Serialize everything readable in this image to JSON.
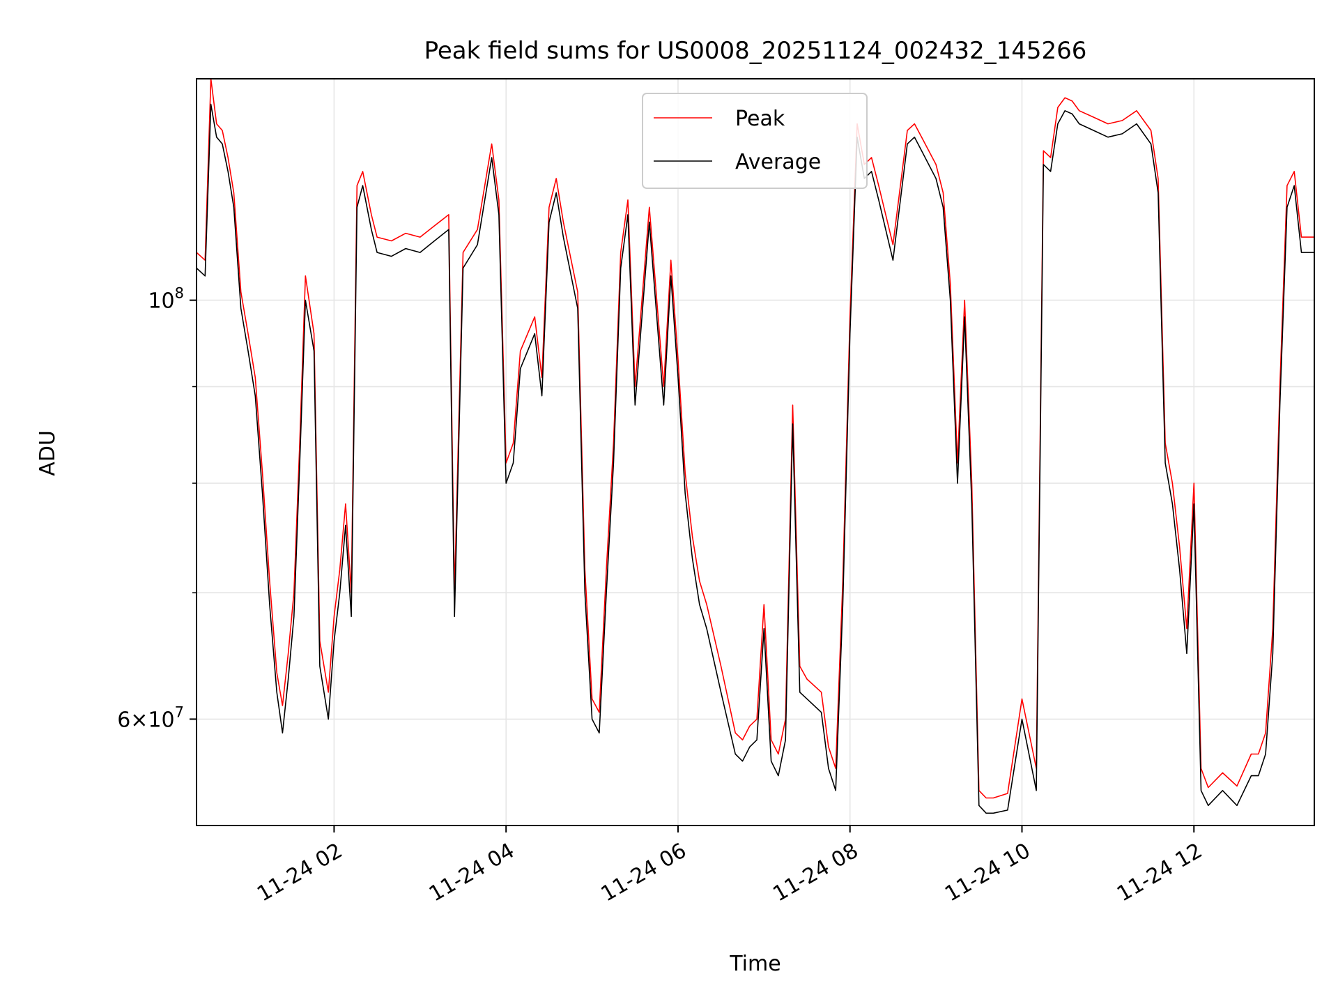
{
  "chart_data": {
    "type": "line",
    "title": "Peak field sums for US0008_20251124_002432_145266",
    "xlabel": "Time",
    "ylabel": "ADU",
    "yscale": "log",
    "grid": true,
    "legend_position": "top-center",
    "xlim": [
      "2025-11-24T00:24:00",
      "2025-11-24T13:24:00"
    ],
    "ylim": [
      52700000,
      131000000
    ],
    "x_ticks": [
      {
        "value": "2025-11-24T02:00:00",
        "label": "11-24 02"
      },
      {
        "value": "2025-11-24T04:00:00",
        "label": "11-24 04"
      },
      {
        "value": "2025-11-24T06:00:00",
        "label": "11-24 06"
      },
      {
        "value": "2025-11-24T08:00:00",
        "label": "11-24 08"
      },
      {
        "value": "2025-11-24T10:00:00",
        "label": "11-24 10"
      },
      {
        "value": "2025-11-24T12:00:00",
        "label": "11-24 12"
      }
    ],
    "y_major_ticks": [
      {
        "value": 100000000,
        "base": "10",
        "exp": "8"
      },
      {
        "value": 60000000,
        "base": "6×10",
        "exp": "7"
      }
    ],
    "y_minor_ticks": [
      70000000,
      80000000,
      90000000
    ],
    "series": [
      {
        "name": "Average",
        "color": "#000000",
        "x": [
          "00:24",
          "00:30",
          "00:34",
          "00:38",
          "00:42",
          "00:46",
          "00:50",
          "00:55",
          "01:00",
          "01:05",
          "01:10",
          "01:15",
          "01:20",
          "01:24",
          "01:28",
          "01:32",
          "01:36",
          "01:40",
          "01:46",
          "01:50",
          "01:56",
          "02:00",
          "02:04",
          "02:08",
          "02:12",
          "02:16",
          "02:20",
          "02:26",
          "02:30",
          "02:40",
          "02:50",
          "03:00",
          "03:10",
          "03:20",
          "03:24",
          "03:30",
          "03:40",
          "03:50",
          "03:55",
          "04:00",
          "04:05",
          "04:10",
          "04:20",
          "04:25",
          "04:30",
          "04:35",
          "04:40",
          "04:50",
          "04:55",
          "05:00",
          "05:05",
          "05:10",
          "05:15",
          "05:20",
          "05:25",
          "05:30",
          "05:40",
          "05:50",
          "05:55",
          "06:00",
          "06:05",
          "06:10",
          "06:15",
          "06:20",
          "06:30",
          "06:40",
          "06:45",
          "06:50",
          "06:55",
          "07:00",
          "07:05",
          "07:10",
          "07:15",
          "07:20",
          "07:25",
          "07:30",
          "07:40",
          "07:45",
          "07:50",
          "07:55",
          "08:00",
          "08:05",
          "08:10",
          "08:15",
          "08:20",
          "08:30",
          "08:40",
          "08:45",
          "08:50",
          "09:00",
          "09:05",
          "09:10",
          "09:15",
          "09:20",
          "09:25",
          "09:30",
          "09:35",
          "09:40",
          "09:50",
          "10:00",
          "10:10",
          "10:15",
          "10:20",
          "10:25",
          "10:30",
          "10:35",
          "10:40",
          "10:50",
          "11:00",
          "11:10",
          "11:20",
          "11:30",
          "11:35",
          "11:40",
          "11:45",
          "11:50",
          "11:55",
          "12:00",
          "12:05",
          "12:10",
          "12:20",
          "12:30",
          "12:40",
          "12:45",
          "12:50",
          "12:55",
          "13:00",
          "13:05",
          "13:10",
          "13:15",
          "13:24"
        ],
        "values": [
          104000000,
          103000000,
          127000000,
          122000000,
          121000000,
          117000000,
          112000000,
          99000000,
          94000000,
          89000000,
          79000000,
          69000000,
          62000000,
          59000000,
          63000000,
          68000000,
          82000000,
          100000000,
          94000000,
          64000000,
          60000000,
          66000000,
          70000000,
          76000000,
          68000000,
          112000000,
          115000000,
          109000000,
          106000000,
          105500000,
          106500000,
          106000000,
          107500000,
          109000000,
          68000000,
          104000000,
          107000000,
          119000000,
          111000000,
          80000000,
          82000000,
          92000000,
          96000000,
          89000000,
          110000000,
          114000000,
          108000000,
          99000000,
          70000000,
          60000000,
          59000000,
          70000000,
          82000000,
          104000000,
          111000000,
          88000000,
          110000000,
          88000000,
          103000000,
          91000000,
          79000000,
          73000000,
          69000000,
          67000000,
          62000000,
          57500000,
          57000000,
          58000000,
          58500000,
          67000000,
          57000000,
          56000000,
          58500000,
          86000000,
          62000000,
          61500000,
          60500000,
          56500000,
          55000000,
          69000000,
          96000000,
          122000000,
          116000000,
          117000000,
          113000000,
          105000000,
          121000000,
          122000000,
          120000000,
          116000000,
          112000000,
          100000000,
          80000000,
          98000000,
          78000000,
          54000000,
          53500000,
          53500000,
          53700000,
          60000000,
          55000000,
          118000000,
          117000000,
          124000000,
          126000000,
          125500000,
          124000000,
          123000000,
          122000000,
          122500000,
          124000000,
          121000000,
          114000000,
          82000000,
          78000000,
          72000000,
          65000000,
          78000000,
          55000000,
          54000000,
          55000000,
          54000000,
          56000000,
          56000000,
          57500000,
          65000000,
          88000000,
          112000000,
          115000000,
          106000000,
          106000000
        ]
      },
      {
        "name": "Peak",
        "color": "#ff0000",
        "x": [
          "00:24",
          "00:30",
          "00:34",
          "00:38",
          "00:42",
          "00:46",
          "00:50",
          "00:55",
          "01:00",
          "01:05",
          "01:10",
          "01:15",
          "01:20",
          "01:24",
          "01:28",
          "01:32",
          "01:36",
          "01:40",
          "01:46",
          "01:50",
          "01:56",
          "02:00",
          "02:04",
          "02:08",
          "02:12",
          "02:16",
          "02:20",
          "02:26",
          "02:30",
          "02:40",
          "02:50",
          "03:00",
          "03:10",
          "03:20",
          "03:24",
          "03:30",
          "03:40",
          "03:50",
          "03:55",
          "04:00",
          "04:05",
          "04:10",
          "04:20",
          "04:25",
          "04:30",
          "04:35",
          "04:40",
          "04:50",
          "04:55",
          "05:00",
          "05:05",
          "05:10",
          "05:15",
          "05:20",
          "05:25",
          "05:30",
          "05:40",
          "05:50",
          "05:55",
          "06:00",
          "06:05",
          "06:10",
          "06:15",
          "06:20",
          "06:30",
          "06:40",
          "06:45",
          "06:50",
          "06:55",
          "07:00",
          "07:05",
          "07:10",
          "07:15",
          "07:20",
          "07:25",
          "07:30",
          "07:40",
          "07:45",
          "07:50",
          "07:55",
          "08:00",
          "08:05",
          "08:10",
          "08:15",
          "08:20",
          "08:30",
          "08:40",
          "08:45",
          "08:50",
          "09:00",
          "09:05",
          "09:10",
          "09:15",
          "09:20",
          "09:25",
          "09:30",
          "09:35",
          "09:40",
          "09:50",
          "10:00",
          "10:10",
          "10:15",
          "10:20",
          "10:25",
          "10:30",
          "10:35",
          "10:40",
          "10:50",
          "11:00",
          "11:10",
          "11:20",
          "11:30",
          "11:35",
          "11:40",
          "11:45",
          "11:50",
          "11:55",
          "12:00",
          "12:05",
          "12:10",
          "12:20",
          "12:30",
          "12:40",
          "12:45",
          "12:50",
          "12:55",
          "13:00",
          "13:05",
          "13:10",
          "13:15",
          "13:24"
        ],
        "values": [
          106000000,
          105000000,
          131000000,
          124000000,
          123000000,
          119000000,
          114000000,
          101000000,
          96000000,
          91000000,
          81000000,
          71000000,
          63500000,
          61000000,
          65000000,
          70000000,
          84000000,
          103000000,
          96000000,
          66000000,
          62000000,
          68000000,
          72000000,
          78000000,
          70000000,
          115000000,
          117000000,
          111000000,
          108000000,
          107500000,
          108500000,
          108000000,
          109500000,
          111000000,
          70000000,
          106000000,
          109000000,
          121000000,
          113000000,
          82000000,
          84000000,
          94000000,
          98000000,
          91000000,
          112000000,
          116000000,
          110000000,
          101000000,
          72000000,
          61500000,
          60500000,
          72000000,
          84000000,
          106000000,
          113000000,
          90000000,
          112000000,
          90000000,
          105000000,
          93000000,
          81000000,
          75000000,
          71000000,
          69000000,
          64000000,
          59000000,
          58500000,
          59500000,
          60000000,
          69000000,
          58500000,
          57500000,
          60000000,
          88000000,
          64000000,
          63000000,
          62000000,
          58000000,
          56500000,
          71000000,
          98000000,
          124000000,
          118000000,
          119000000,
          115000000,
          107000000,
          123000000,
          124000000,
          122000000,
          118000000,
          114000000,
          102000000,
          82000000,
          100000000,
          80000000,
          55000000,
          54500000,
          54500000,
          54800000,
          61500000,
          56500000,
          120000000,
          119000000,
          126500000,
          128000000,
          127500000,
          126000000,
          125000000,
          124000000,
          124500000,
          126000000,
          123000000,
          116000000,
          84000000,
          80000000,
          74000000,
          67000000,
          80000000,
          56500000,
          55200000,
          56200000,
          55300000,
          57500000,
          57500000,
          59000000,
          67000000,
          90000000,
          115000000,
          117000000,
          108000000,
          108000000
        ]
      }
    ]
  }
}
